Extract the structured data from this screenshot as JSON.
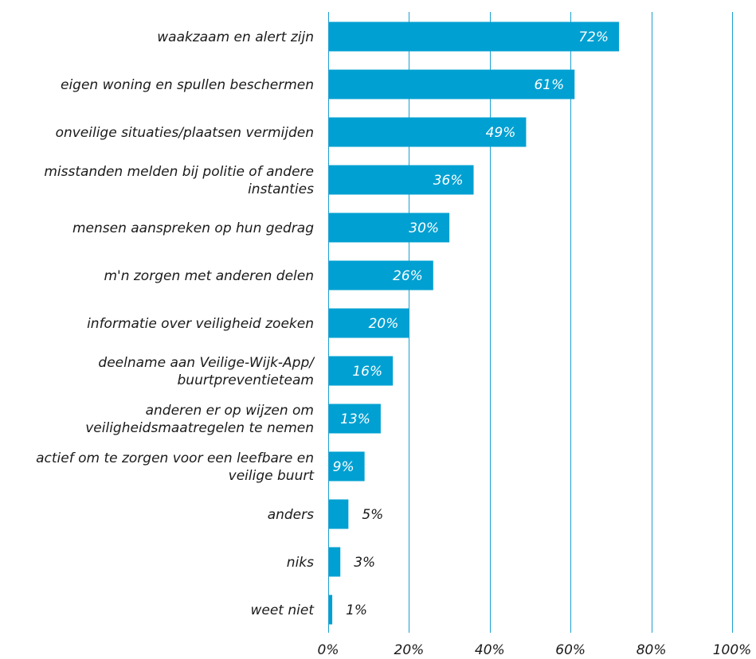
{
  "colors": {
    "bar": "#00a0d2",
    "grid": "#1ba0d0",
    "text": "#1a1a1a",
    "inside_label": "#ffffff"
  },
  "chart_data": {
    "type": "bar",
    "orientation": "horizontal",
    "categories": [
      [
        "waakzaam en alert zijn"
      ],
      [
        "eigen woning en spullen beschermen"
      ],
      [
        "onveilige situaties/plaatsen vermijden"
      ],
      [
        "misstanden melden bij politie of andere",
        "instanties"
      ],
      [
        "mensen aanspreken op hun gedrag"
      ],
      [
        "m'n zorgen met anderen delen"
      ],
      [
        "informatie over veiligheid zoeken"
      ],
      [
        "deelname aan Veilige-Wijk-App/",
        "buurtpreventieteam"
      ],
      [
        "anderen er op wijzen om",
        "veiligheidsmaatregelen te nemen"
      ],
      [
        "actief om te zorgen voor een leefbare en",
        "veilige buurt"
      ],
      [
        "anders"
      ],
      [
        "niks"
      ],
      [
        "weet niet"
      ]
    ],
    "values": [
      72,
      61,
      49,
      36,
      30,
      26,
      20,
      16,
      13,
      9,
      5,
      3,
      1
    ],
    "value_labels": [
      "72%",
      "61%",
      "49%",
      "36%",
      "30%",
      "26%",
      "20%",
      "16%",
      "13%",
      "9%",
      "5%",
      "3%",
      "1%"
    ],
    "xlim": [
      0,
      100
    ],
    "xticks": [
      0,
      20,
      40,
      60,
      80,
      100
    ],
    "xtick_labels": [
      "0%",
      "20%",
      "40%",
      "60%",
      "80%",
      "100%"
    ],
    "grid": true
  }
}
